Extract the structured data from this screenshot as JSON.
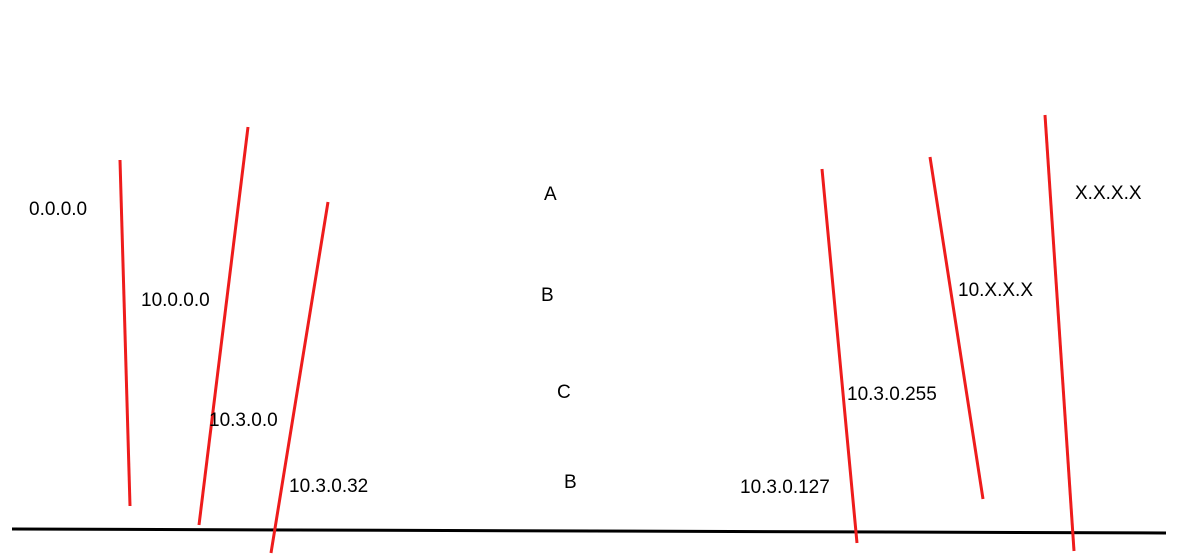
{
  "colors": {
    "boundary_line": "#ee1c1c",
    "baseline": "#000000",
    "text": "#000000",
    "background": "#ffffff"
  },
  "labels": {
    "start_all": "0.0.0.0",
    "start_10": "10.0.0.0",
    "start_10_3": "10.3.0.0",
    "start_10_3_32": "10.3.0.32",
    "region_a": "A",
    "region_b_top": "B",
    "region_c": "C",
    "region_b_bottom": "B",
    "end_10_3_127": "10.3.0.127",
    "end_10_3_255": "10.3.0.255",
    "end_10": "10.X.X.X",
    "end_all": "X.X.X.X"
  }
}
